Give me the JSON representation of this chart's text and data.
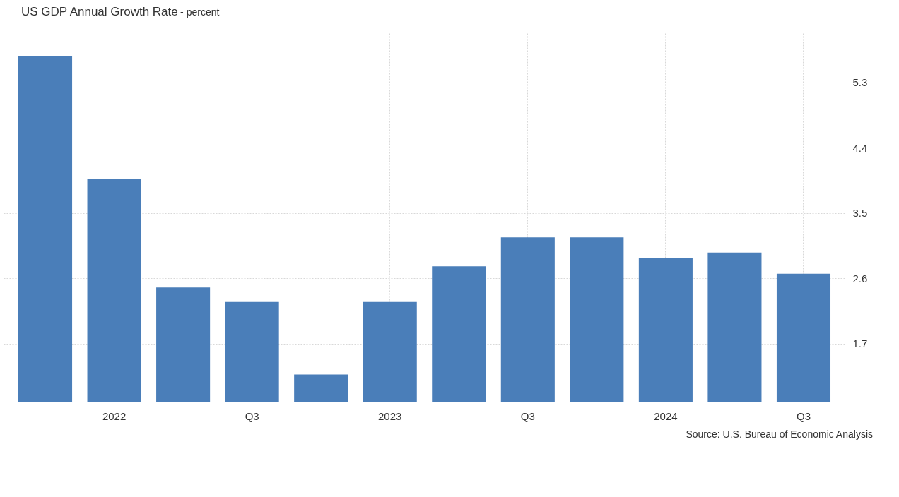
{
  "chart_data": {
    "type": "bar",
    "title": "US GDP Annual Growth Rate",
    "subtitle": "- percent",
    "categories": [
      null,
      "2022",
      null,
      "Q3",
      null,
      "2023",
      null,
      "Q3",
      null,
      "2024",
      null,
      "Q3"
    ],
    "values": [
      5.67,
      3.97,
      2.48,
      2.28,
      1.28,
      2.28,
      2.77,
      3.17,
      3.17,
      2.88,
      2.96,
      2.67
    ],
    "color": "#4a7eb9",
    "ylim": [
      0.9,
      6.0
    ],
    "yticks": [
      1.7,
      2.6,
      3.5,
      4.4,
      5.3
    ],
    "grid": true,
    "annotations": [
      "Source: U.S. Bureau of Economic Analysis"
    ]
  }
}
